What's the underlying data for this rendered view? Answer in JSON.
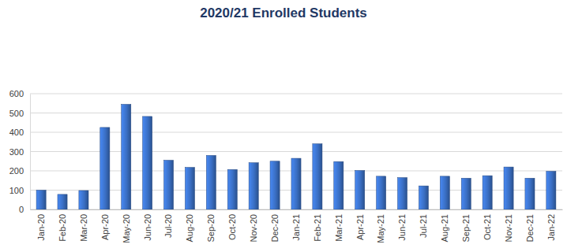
{
  "chart_data": {
    "type": "bar",
    "title": "2020/21 Enrolled Students",
    "categories": [
      "Jan-20",
      "Feb-20",
      "Mar-20",
      "Apr-20",
      "May-20",
      "Jun-20",
      "Jul-20",
      "Aug-20",
      "Sep-20",
      "Oct-20",
      "Nov-20",
      "Dec-20",
      "Jan-21",
      "Feb-21",
      "Mar-21",
      "Apr-21",
      "May-21",
      "Jun-21",
      "Jul-21",
      "Aug-21",
      "Sep-21",
      "Oct-21",
      "Nov-21",
      "Dec-21",
      "Jan-22"
    ],
    "values": [
      100,
      78,
      98,
      425,
      545,
      482,
      255,
      218,
      280,
      207,
      242,
      250,
      265,
      340,
      248,
      202,
      172,
      165,
      122,
      172,
      162,
      175,
      220,
      162,
      198
    ],
    "color": "#3a6fc4",
    "ylim": [
      0,
      600
    ],
    "yticks": [
      0,
      100,
      200,
      300,
      400,
      500,
      600
    ],
    "grid": true
  }
}
